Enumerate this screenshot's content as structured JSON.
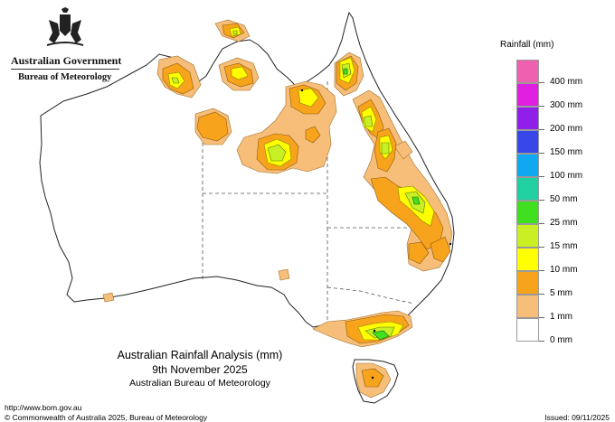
{
  "header": {
    "gov_name": "Australian Government",
    "bureau_name": "Bureau of Meteorology"
  },
  "legend": {
    "title": "Rainfall (mm)",
    "levels": [
      {
        "label": "0 mm",
        "color": "#ffffff"
      },
      {
        "label": "1 mm",
        "color": "#f7be7a"
      },
      {
        "label": "5 mm",
        "color": "#f7a31c"
      },
      {
        "label": "10 mm",
        "color": "#ffff00"
      },
      {
        "label": "15 mm",
        "color": "#c8f024"
      },
      {
        "label": "25 mm",
        "color": "#40e020"
      },
      {
        "label": "50 mm",
        "color": "#20d0a0"
      },
      {
        "label": "100 mm",
        "color": "#10a8f0"
      },
      {
        "label": "150 mm",
        "color": "#3848e8"
      },
      {
        "label": "200 mm",
        "color": "#9020e8"
      },
      {
        "label": "300 mm",
        "color": "#e020e0"
      },
      {
        "label": "400 mm",
        "color": "#f060b0"
      }
    ]
  },
  "title": {
    "line1": "Australian Rainfall Analysis (mm)",
    "line2": "9th November 2025",
    "line3": "Australian Bureau of Meteorology"
  },
  "footer": {
    "url": "http://www.bom.gov.au",
    "copyright": "© Commonwealth of Australia 2025, Bureau of Meteorology",
    "issued": "Issued: 09/11/2025"
  }
}
